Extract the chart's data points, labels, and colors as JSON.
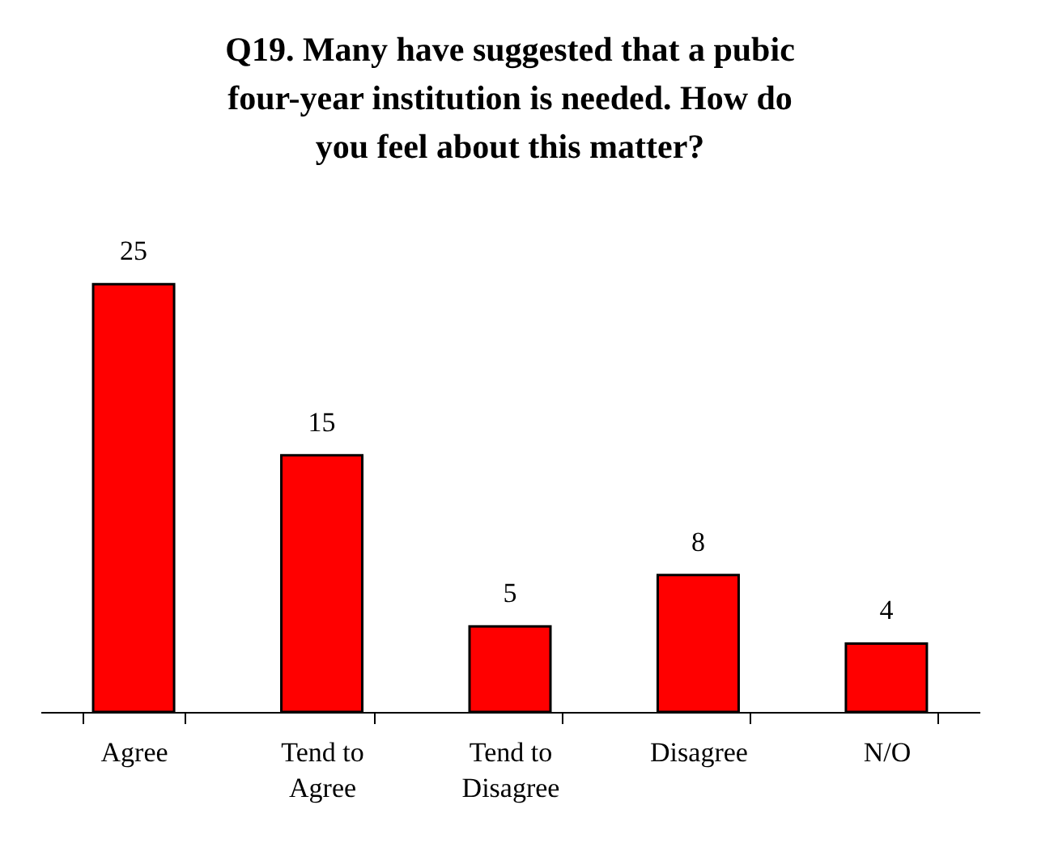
{
  "chart_data": {
    "type": "bar",
    "title": "Q19. Many have suggested that a pubic four-year institution is needed. How do you feel about this matter?",
    "categories": [
      "Agree",
      "Tend to Agree",
      "Tend to Disagree",
      "Disagree",
      "N/O"
    ],
    "values": [
      25,
      15,
      5,
      8,
      4
    ],
    "color": "#ff0000",
    "data_labels": true,
    "grid": false
  }
}
